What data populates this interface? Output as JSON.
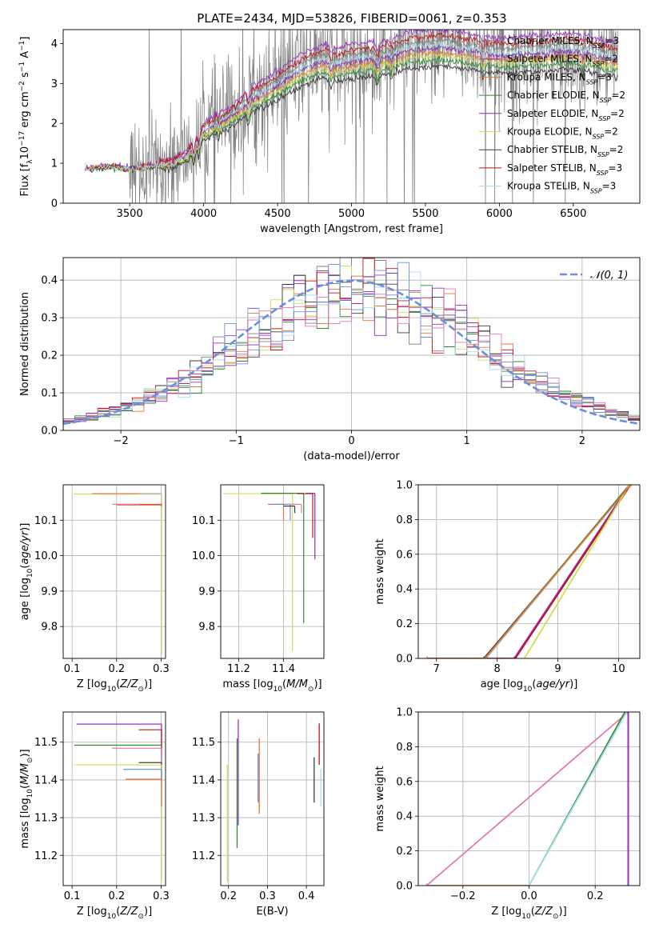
{
  "figure_title": "PLATE=2434, MJD=53826, FIBERID=0061, z=0.353",
  "colors": {
    "C1": "#808080",
    "C2": "#9b30c0",
    "C3": "#e8733a",
    "C4": "#2e8b2e",
    "C5": "#8e2fb0",
    "C6": "#c8e05a",
    "C7": "#3a3a3a",
    "C8": "#c0151a",
    "C9": "#a8dde8",
    "C10": "#e07bb0",
    "C11": "#6a8fdd",
    "normal": "#6a8fdd"
  },
  "series_names": [
    "Chabrier MILES, N_SSP=3",
    "Salpeter MILES, N_SSP=2",
    "Kroupa MILES, N_SSP=3",
    "Chabrier ELODIE, N_SSP=2",
    "Salpeter ELODIE, N_SSP=2",
    "Kroupa ELODIE, N_SSP=2",
    "Chabrier STELIB, N_SSP=2",
    "Salpeter STELIB, N_SSP=3",
    "Kroupa STELIB, N_SSP=3"
  ],
  "chart_data": [
    {
      "id": "spectrum",
      "type": "line",
      "xlabel": "wavelength [Angstrom, rest frame]",
      "ylabel": "Flux [f_λ 10^-17 erg cm^-2 s^-1 A^-1]",
      "xlim": [
        3050,
        6950
      ],
      "ylim": [
        0,
        4.35
      ],
      "xticks": [
        3500,
        4000,
        4500,
        5000,
        5500,
        6000,
        6500
      ],
      "yticks": [
        0,
        1,
        2,
        3,
        4
      ],
      "grid": false,
      "legend_position": "top-right",
      "legend": [
        {
          "label": "Chabrier MILES, N",
          "sub": "SSP",
          "suffix": "=3",
          "color": "C1"
        },
        {
          "label": "Salpeter MILES, N",
          "sub": "SSP",
          "suffix": "=2",
          "color": "C2"
        },
        {
          "label": "Kroupa MILES, N",
          "sub": "SSP",
          "suffix": "=3",
          "color": "C3"
        },
        {
          "label": "Chabrier ELODIE, N",
          "sub": "SSP",
          "suffix": "=2",
          "color": "C4"
        },
        {
          "label": "Salpeter ELODIE, N",
          "sub": "SSP",
          "suffix": "=2",
          "color": "C5"
        },
        {
          "label": "Kroupa ELODIE, N",
          "sub": "SSP",
          "suffix": "=2",
          "color": "C6"
        },
        {
          "label": "Chabrier STELIB, N",
          "sub": "SSP",
          "suffix": "=2",
          "color": "C7"
        },
        {
          "label": "Salpeter STELIB, N",
          "sub": "SSP",
          "suffix": "=3",
          "color": "C8"
        },
        {
          "label": "Kroupa STELIB, N",
          "sub": "SSP",
          "suffix": "=3",
          "color": "C9"
        }
      ],
      "model_anchor_points": {
        "x": [
          3200,
          3300,
          3400,
          3500,
          3600,
          3700,
          3800,
          3900,
          4000,
          4100,
          4200,
          4300,
          4400,
          4500,
          4600,
          4700,
          4800,
          4900,
          5000,
          5100,
          5200,
          5300,
          5400,
          5500,
          5600,
          5700,
          5800,
          5900,
          6000,
          6100,
          6200,
          6300,
          6400,
          6500,
          6600,
          6700,
          6800
        ],
        "y": [
          0.85,
          0.9,
          0.92,
          0.85,
          0.9,
          0.95,
          1.0,
          1.25,
          1.8,
          2.0,
          2.2,
          2.55,
          2.75,
          2.95,
          3.2,
          3.4,
          3.55,
          3.45,
          3.55,
          3.6,
          3.65,
          3.7,
          3.85,
          3.85,
          3.9,
          3.85,
          3.8,
          3.75,
          3.7,
          3.7,
          3.75,
          3.75,
          3.8,
          3.8,
          3.75,
          3.65,
          3.6
        ]
      },
      "observed_range": [
        3200,
        6800
      ]
    },
    {
      "id": "residual_histogram",
      "type": "histogram",
      "xlabel": "(data-model)/error",
      "ylabel": "Normed distribution",
      "xlim": [
        -2.5,
        2.5
      ],
      "ylim": [
        0,
        0.46
      ],
      "xticks": [
        -2,
        -1,
        0,
        1,
        2
      ],
      "yticks": [
        0.0,
        0.1,
        0.2,
        0.3,
        0.4
      ],
      "grid": true,
      "legend_position": "top-right",
      "legend": [
        {
          "label": "𝒩(0, 1)",
          "style": "dashed",
          "color": "normal"
        }
      ],
      "bin_width": 0.1,
      "bin_start": -2.5,
      "series_count": 9
    },
    {
      "id": "age_vs_Z",
      "type": "scatter-errorbars",
      "xlabel": "Z [log10(Z/Z⊙)]",
      "ylabel": "age [log10(age/yr)]",
      "xlim": [
        0.08,
        0.31
      ],
      "ylim": [
        9.71,
        10.2
      ],
      "xticks": [
        0.1,
        0.2,
        0.3
      ],
      "yticks": [
        9.8,
        9.9,
        10.0,
        10.1
      ],
      "grid": true,
      "points": [
        {
          "x": 0.301,
          "y": 10.174,
          "xlo": 0.104,
          "ylo": 9.72,
          "color": "C6"
        },
        {
          "x": 0.301,
          "y": 10.175,
          "xlo": 0.145,
          "ylo": 10.17,
          "color": "C3"
        },
        {
          "x": 0.301,
          "y": 10.176,
          "xlo": 0.25,
          "ylo": 10.17,
          "color": "C9"
        },
        {
          "x": 0.301,
          "y": 10.145,
          "xlo": 0.19,
          "ylo": 10.14,
          "color": "C10"
        },
        {
          "x": 0.301,
          "y": 10.144,
          "xlo": 0.25,
          "ylo": 10.14,
          "color": "C8"
        },
        {
          "x": 0.301,
          "y": 10.143,
          "xlo": 0.2,
          "ylo": 10.14,
          "color": "C3"
        }
      ]
    },
    {
      "id": "age_vs_mass",
      "type": "scatter-errorbars",
      "xlabel": "mass [log10(M/M⊙)]",
      "ylabel": "",
      "xlim": [
        11.12,
        11.58
      ],
      "ylim": [
        9.71,
        10.2
      ],
      "xticks": [
        11.2,
        11.4
      ],
      "yticks": [
        9.8,
        9.9,
        10.0,
        10.1
      ],
      "grid": true,
      "points": [
        {
          "x": 11.44,
          "y": 10.175,
          "xlo": 11.13,
          "ylo": 9.73,
          "color": "C6"
        },
        {
          "x": 11.49,
          "y": 10.176,
          "xlo": 11.3,
          "ylo": 9.81,
          "color": "C4"
        },
        {
          "x": 11.54,
          "y": 10.176,
          "xlo": 11.5,
          "ylo": 9.99,
          "color": "C5"
        },
        {
          "x": 11.4,
          "y": 10.145,
          "xlo": 11.33,
          "ylo": 10.1,
          "color": "C3"
        },
        {
          "x": 11.43,
          "y": 10.145,
          "xlo": 11.35,
          "ylo": 10.1,
          "color": "C11"
        },
        {
          "x": 11.45,
          "y": 10.14,
          "xlo": 11.4,
          "ylo": 10.12,
          "color": "C7"
        },
        {
          "x": 11.53,
          "y": 10.175,
          "xlo": 11.46,
          "ylo": 10.05,
          "color": "C8"
        },
        {
          "x": 11.48,
          "y": 10.145,
          "xlo": 11.42,
          "ylo": 10.12,
          "color": "C10"
        }
      ]
    },
    {
      "id": "weight_vs_age",
      "type": "line",
      "xlabel": "age [log10(age/yr)]",
      "ylabel": "mass weight",
      "xlim": [
        6.7,
        10.35
      ],
      "ylim": [
        0.0,
        1.0
      ],
      "xticks": [
        7,
        8,
        9,
        10
      ],
      "yticks": [
        0.0,
        0.2,
        0.4,
        0.6,
        0.8,
        1.0
      ],
      "grid": true,
      "series": [
        {
          "color": "C7",
          "x": [
            6.85,
            7.78,
            10.2
          ],
          "y": [
            0.0,
            0.0,
            1.0
          ]
        },
        {
          "color": "C9",
          "x": [
            7.82,
            10.2
          ],
          "y": [
            0.0,
            1.0
          ]
        },
        {
          "color": "C4",
          "x": [
            7.8,
            10.18
          ],
          "y": [
            0.0,
            1.0
          ]
        },
        {
          "color": "C2",
          "x": [
            8.28,
            10.18
          ],
          "y": [
            0.0,
            1.0
          ]
        },
        {
          "color": "C5",
          "x": [
            8.3,
            10.18
          ],
          "y": [
            0.0,
            1.0
          ]
        },
        {
          "color": "C8",
          "x": [
            6.85,
            8.3,
            10.2
          ],
          "y": [
            0.0,
            0.0,
            1.0
          ]
        },
        {
          "color": "C6",
          "x": [
            8.45,
            10.18
          ],
          "y": [
            0.0,
            1.0
          ]
        },
        {
          "color": "C3",
          "x": [
            6.85,
            7.8,
            10.2
          ],
          "y": [
            0.0,
            0.0,
            1.0
          ]
        }
      ]
    },
    {
      "id": "mass_vs_Z",
      "type": "scatter-errorbars",
      "xlabel": "Z [log10(Z/Z⊙)]",
      "ylabel": "mass [log10(M/M⊙)]",
      "xlim": [
        0.08,
        0.31
      ],
      "ylim": [
        11.12,
        11.58
      ],
      "xticks": [
        0.1,
        0.2,
        0.3
      ],
      "yticks": [
        11.2,
        11.3,
        11.4,
        11.5
      ],
      "grid": true,
      "points": [
        {
          "x": 0.301,
          "y": 11.548,
          "xlo": 0.11,
          "ylo": 11.45,
          "color": "C2"
        },
        {
          "x": 0.301,
          "y": 11.533,
          "xlo": 0.25,
          "ylo": 11.47,
          "color": "C8"
        },
        {
          "x": 0.301,
          "y": 11.492,
          "xlo": 0.105,
          "ylo": 11.43,
          "color": "C4"
        },
        {
          "x": 0.301,
          "y": 11.484,
          "xlo": 0.19,
          "ylo": 11.42,
          "color": "C10"
        },
        {
          "x": 0.301,
          "y": 11.446,
          "xlo": 0.25,
          "ylo": 11.4,
          "color": "C7"
        },
        {
          "x": 0.301,
          "y": 11.44,
          "xlo": 0.104,
          "ylo": 11.13,
          "color": "C6"
        },
        {
          "x": 0.301,
          "y": 11.428,
          "xlo": 0.215,
          "ylo": 11.38,
          "color": "C11"
        },
        {
          "x": 0.301,
          "y": 11.402,
          "xlo": 0.22,
          "ylo": 11.33,
          "color": "C3"
        }
      ]
    },
    {
      "id": "mass_vs_EBV",
      "type": "errorbars",
      "xlabel": "E(B-V)",
      "ylabel": "",
      "xlim": [
        0.18,
        0.445
      ],
      "ylim": [
        11.12,
        11.58
      ],
      "xticks": [
        0.2,
        0.3,
        0.4
      ],
      "yticks": [
        11.2,
        11.3,
        11.4,
        11.5
      ],
      "grid": true,
      "points": [
        {
          "x": 0.197,
          "ylo": 11.13,
          "yhi": 11.44,
          "color": "C6"
        },
        {
          "x": 0.222,
          "ylo": 11.22,
          "yhi": 11.51,
          "color": "C4"
        },
        {
          "x": 0.225,
          "ylo": 11.28,
          "yhi": 11.56,
          "color": "C2"
        },
        {
          "x": 0.276,
          "ylo": 11.34,
          "yhi": 11.47,
          "color": "C11"
        },
        {
          "x": 0.279,
          "ylo": 11.31,
          "yhi": 11.51,
          "color": "C3"
        },
        {
          "x": 0.42,
          "ylo": 11.34,
          "yhi": 11.46,
          "color": "C7"
        },
        {
          "x": 0.433,
          "ylo": 11.44,
          "yhi": 11.55,
          "color": "C8"
        },
        {
          "x": 0.437,
          "ylo": 11.33,
          "yhi": 11.43,
          "color": "C9"
        }
      ]
    },
    {
      "id": "weight_vs_Z",
      "type": "line",
      "xlabel": "Z [log10(Z/Z⊙)]",
      "ylabel": "mass weight",
      "xlim": [
        -0.335,
        0.335
      ],
      "ylim": [
        0.0,
        1.0
      ],
      "xticks": [
        -0.2,
        0.0,
        0.2
      ],
      "yticks": [
        0.0,
        0.2,
        0.4,
        0.6,
        0.8,
        1.0
      ],
      "grid": true,
      "series": [
        {
          "color": "C10",
          "x": [
            -0.31,
            0.3
          ],
          "y": [
            0.0,
            1.0
          ]
        },
        {
          "color": "C3",
          "x": [
            -0.31,
            0.0
          ],
          "y": [
            0.0,
            0.0
          ]
        },
        {
          "color": "C4",
          "x": [
            0.0,
            0.29
          ],
          "y": [
            0.0,
            1.0
          ]
        },
        {
          "color": "C9",
          "x": [
            0.0,
            0.295
          ],
          "y": [
            0.0,
            1.0
          ]
        },
        {
          "color": "C2",
          "x": [
            0.3,
            0.3
          ],
          "y": [
            0.0,
            1.0
          ]
        },
        {
          "color": "C5",
          "x": [
            0.3,
            0.3
          ],
          "y": [
            0.0,
            1.0
          ]
        }
      ]
    }
  ]
}
